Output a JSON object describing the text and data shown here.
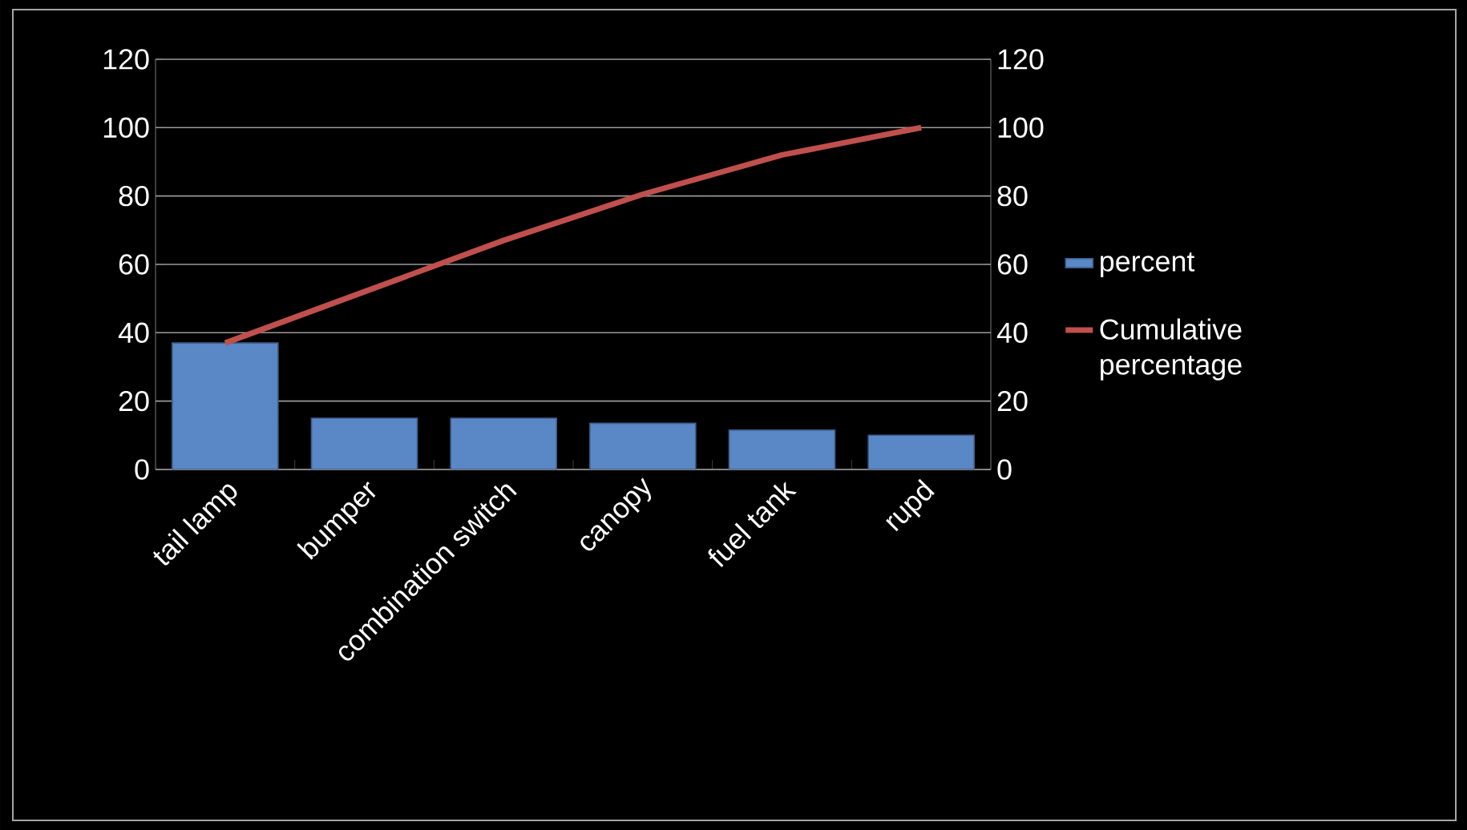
{
  "chart_data": {
    "type": "bar",
    "categories": [
      "tail lamp",
      "bumper",
      "combination switch",
      "canopy",
      "fuel tank",
      "rupd"
    ],
    "series": [
      {
        "name": "percent",
        "color": "#5a87c5",
        "values": [
          37,
          15,
          15,
          13.5,
          11.5,
          10
        ]
      },
      {
        "name": "Cumulative percentage",
        "type": "line",
        "axis": "y2",
        "color": "#c0504d",
        "line_style": "solid",
        "values": [
          37,
          52,
          67,
          80.5,
          92,
          100
        ]
      }
    ],
    "ylim": [
      0,
      120
    ],
    "yticks": [
      0,
      20,
      40,
      60,
      80,
      100,
      120
    ],
    "y2lim": [
      0,
      120
    ],
    "y2ticks": [
      0,
      20,
      40,
      60,
      80,
      100,
      120
    ],
    "grid": "y",
    "legend": "right"
  }
}
